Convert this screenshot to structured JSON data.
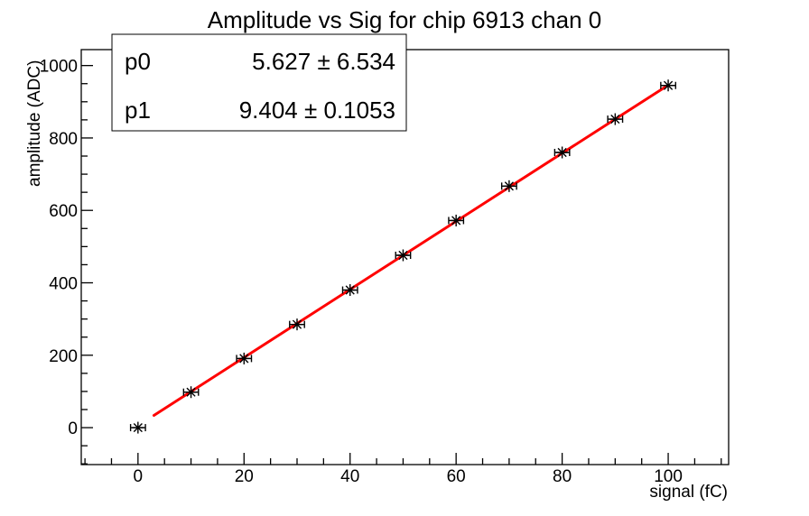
{
  "window": {
    "background_color": "#ffffff"
  },
  "stats_box": {
    "rows": [
      {
        "name": "p0",
        "value": "5.627 ± 6.534"
      },
      {
        "name": "p1",
        "value": "9.404 ± 0.1053"
      }
    ]
  },
  "chart_data": {
    "type": "scatter",
    "title": "Amplitude vs Sig for chip 6913 chan 0",
    "xlabel": "signal (fC)",
    "ylabel": "amplitude (ADC)",
    "xlim": [
      -10.7,
      111.4
    ],
    "ylim": [
      -102,
      1044
    ],
    "x_major_ticks": [
      0,
      20,
      40,
      60,
      80,
      100
    ],
    "x_minor_step": 5,
    "y_major_ticks": [
      0,
      200,
      400,
      600,
      800,
      1000
    ],
    "y_minor_step": 50,
    "grid": false,
    "legend": "none",
    "marker": "asterisk",
    "points": {
      "x": [
        0,
        10,
        20,
        30,
        40,
        50,
        60,
        70,
        80,
        90,
        100
      ],
      "y": [
        0,
        98,
        191,
        285,
        380,
        476,
        572,
        667,
        760,
        852,
        945
      ],
      "xerr": 1.4
    },
    "fit": {
      "name": "linear",
      "p0": 5.627,
      "p1": 9.404,
      "x_range": [
        3,
        100
      ]
    },
    "colors": {
      "fit_line": "#ff0000",
      "marker": "#000000",
      "frame": "#000000",
      "background": "#ffffff"
    }
  }
}
